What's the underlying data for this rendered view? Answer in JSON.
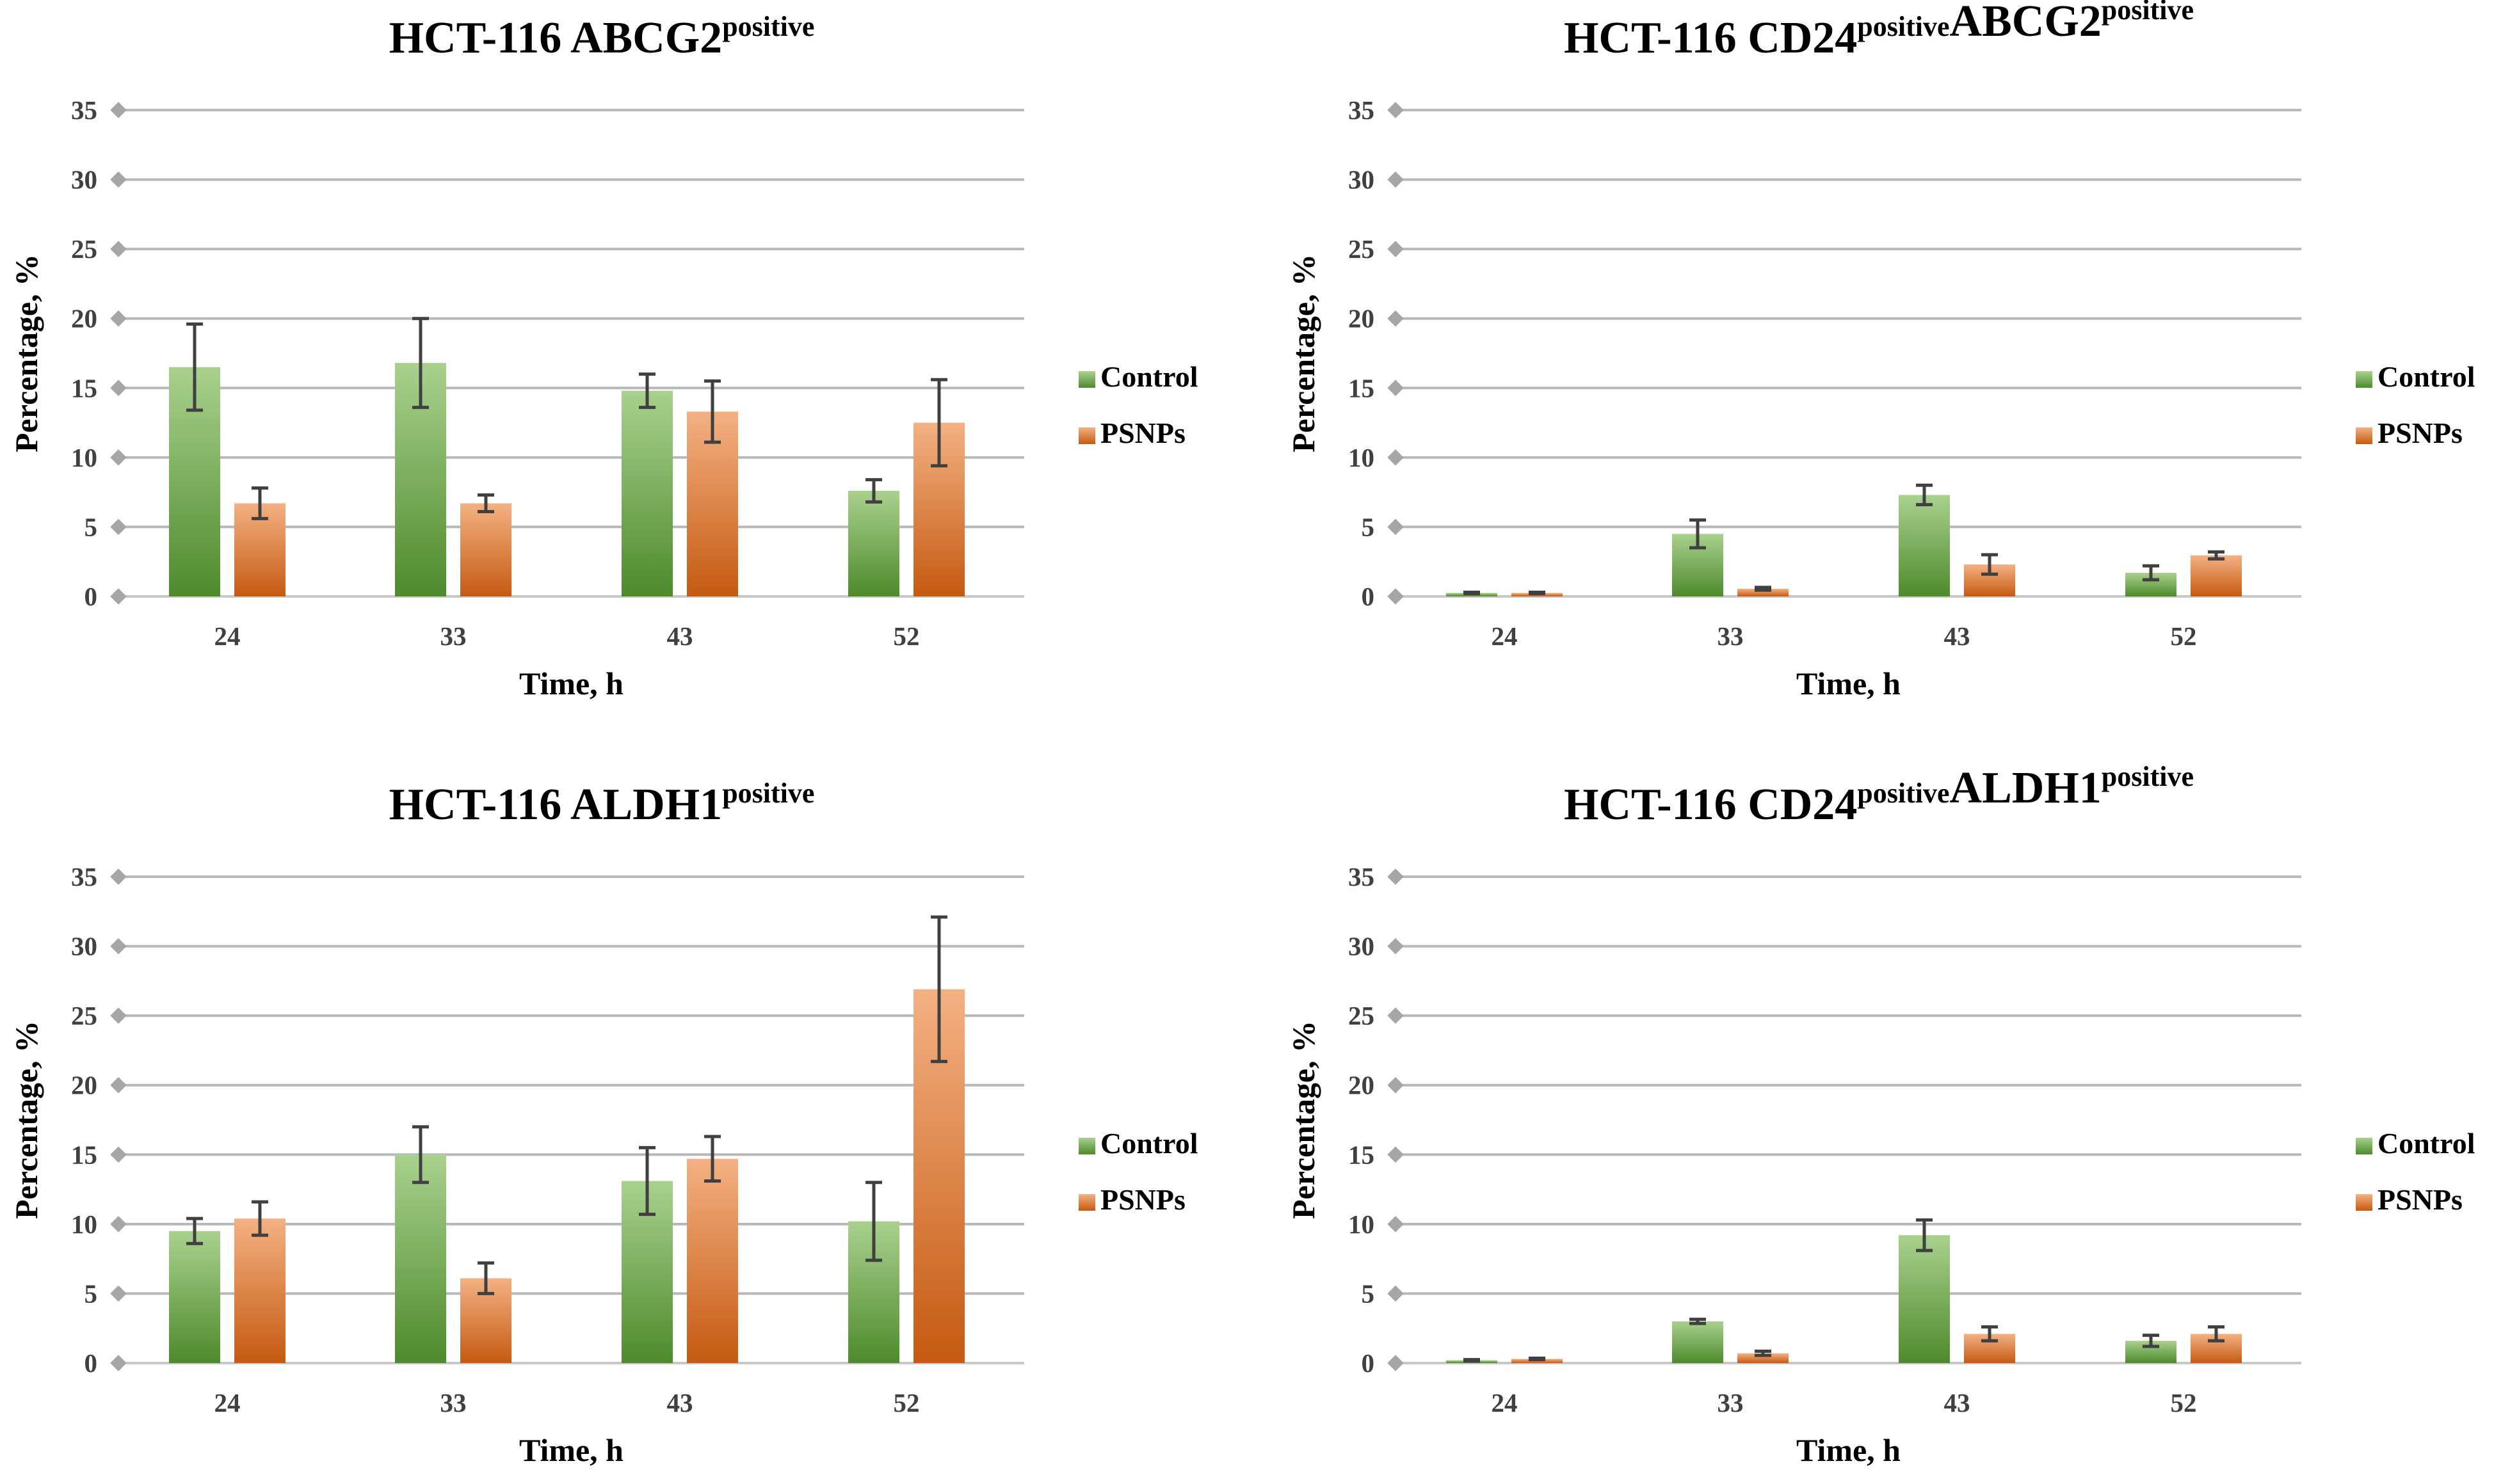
{
  "colors": {
    "control_top": "#a9d18e",
    "control_bottom": "#4e8a2c",
    "psnps_top": "#f4b183",
    "psnps_bottom": "#c55a11",
    "grid": "#b8b8b8",
    "error_bar": "#404040"
  },
  "chart_data": [
    {
      "type": "bar",
      "title": {
        "prefix": "HCT-116  ABCG2",
        "sup": "positive",
        "parts": [
          [
            "ABCG2",
            "positive"
          ]
        ]
      },
      "xlabel": "Time, h",
      "ylabel": "Percentage, %",
      "ylim": [
        0,
        35
      ],
      "yticks": [
        0,
        5,
        10,
        15,
        20,
        25,
        30,
        35
      ],
      "categories": [
        "24",
        "33",
        "43",
        "52"
      ],
      "legend": [
        "Control",
        "PSNPs"
      ],
      "series": [
        {
          "name": "Control",
          "values": [
            16.5,
            16.8,
            14.8,
            7.6
          ],
          "errors": [
            3.1,
            3.2,
            1.2,
            0.8
          ]
        },
        {
          "name": "PSNPs",
          "values": [
            6.7,
            6.7,
            13.3,
            12.5
          ],
          "errors": [
            1.1,
            0.6,
            2.2,
            3.1
          ]
        }
      ]
    },
    {
      "type": "bar",
      "title": {
        "prefix": "HCT-116  ",
        "parts": [
          [
            "CD24",
            "positive"
          ],
          [
            "ABCG2",
            "positive"
          ]
        ]
      },
      "xlabel": "Time, h",
      "ylabel": "Percentage, %",
      "ylim": [
        0,
        35
      ],
      "yticks": [
        0,
        5,
        10,
        15,
        20,
        25,
        30,
        35
      ],
      "categories": [
        "24",
        "33",
        "43",
        "52"
      ],
      "legend": [
        "Control",
        "PSNPs"
      ],
      "series": [
        {
          "name": "Control",
          "values": [
            0.25,
            4.5,
            7.3,
            1.7
          ],
          "errors": [
            0.05,
            1.0,
            0.7,
            0.5
          ]
        },
        {
          "name": "PSNPs",
          "values": [
            0.25,
            0.55,
            2.3,
            2.95
          ],
          "errors": [
            0.05,
            0.1,
            0.7,
            0.25
          ]
        }
      ]
    },
    {
      "type": "bar",
      "title": {
        "prefix": "HCT-116  ",
        "parts": [
          [
            "ALDH1",
            "positive"
          ]
        ]
      },
      "xlabel": "Time, h",
      "ylabel": "Percentage, %",
      "ylim": [
        0,
        35
      ],
      "yticks": [
        0,
        5,
        10,
        15,
        20,
        25,
        30,
        35
      ],
      "categories": [
        "24",
        "33",
        "43",
        "52"
      ],
      "legend": [
        "Control",
        "PSNPs"
      ],
      "series": [
        {
          "name": "Control",
          "values": [
            9.5,
            15.0,
            13.1,
            10.2
          ],
          "errors": [
            0.9,
            2.0,
            2.4,
            2.8
          ]
        },
        {
          "name": "PSNPs",
          "values": [
            10.4,
            6.1,
            14.7,
            26.9
          ],
          "errors": [
            1.2,
            1.1,
            1.6,
            5.2
          ]
        }
      ]
    },
    {
      "type": "bar",
      "title": {
        "prefix": "HCT-116  ",
        "parts": [
          [
            "CD24",
            "positive"
          ],
          [
            "ALDH1",
            "positive"
          ]
        ]
      },
      "xlabel": "Time, h",
      "ylabel": "Percentage, %",
      "ylim": [
        0,
        35
      ],
      "yticks": [
        0,
        5,
        10,
        15,
        20,
        25,
        30,
        35
      ],
      "categories": [
        "24",
        "33",
        "43",
        "52"
      ],
      "legend": [
        "Control",
        "PSNPs"
      ],
      "series": [
        {
          "name": "Control",
          "values": [
            0.2,
            3.0,
            9.2,
            1.6
          ],
          "errors": [
            0.05,
            0.15,
            1.1,
            0.4
          ]
        },
        {
          "name": "PSNPs",
          "values": [
            0.3,
            0.7,
            2.1,
            2.1
          ],
          "errors": [
            0.05,
            0.15,
            0.5,
            0.5
          ]
        }
      ]
    }
  ]
}
